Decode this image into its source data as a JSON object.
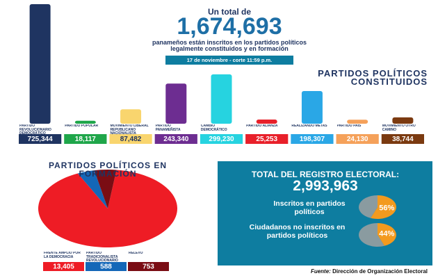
{
  "header": {
    "intro": "Un total de",
    "total": "1,674,693",
    "line1": "panameños están inscritos en los partidos políticos",
    "line2": "legalmente constituidos y en formación",
    "date": "17 de noviembre - corte 11:59 p.m."
  },
  "chart_data": [
    {
      "type": "bar",
      "title": "PARTIDOS POLÍTICOS CONSTITUIDOS",
      "categories": [
        "PARTIDO REVOLUCIONARIO DEMOCRÁTICO",
        "PARTIDO POPULAR",
        "MOVIMIENTO LIBERAL REPUBLICANO NACIONALISTA",
        "PARTIDO PANAMEÑISTA",
        "CAMBIO DEMOCRÁTICO",
        "PARTIDO ALIANZA",
        "REALIZANDO METAS",
        "PARTIDO PAÍS",
        "MOVIMIENTO OTRO CAMINO"
      ],
      "values": [
        725344,
        18117,
        87482,
        243340,
        299230,
        25253,
        198307,
        24130,
        38744
      ],
      "value_labels": [
        "725,344",
        "18,117",
        "87,482",
        "243,340",
        "299,230",
        "25,253",
        "198,307",
        "24,130",
        "38,744"
      ],
      "colors": [
        "#1f3461",
        "#1fa64a",
        "#f9d56e",
        "#6d2d91",
        "#26d3e0",
        "#e8202a",
        "#2aa7e6",
        "#f5a15a",
        "#7b3a10"
      ]
    },
    {
      "type": "pie",
      "title": "PARTIDOS POLÍTICOS EN FORMACIÓN",
      "categories": [
        "FRENTE AMPLIO POR LA DEMOCRACIA",
        "PARTIDO TRADICIONALISTA REVOLUCIONARIO",
        "RELEVO"
      ],
      "values": [
        13405,
        588,
        753
      ],
      "value_labels": [
        "13,405",
        "588",
        "753"
      ],
      "colors": [
        "#ee1c25",
        "#1467b8",
        "#7a0d14"
      ]
    },
    {
      "type": "pie",
      "title": "Inscritos en partidos políticos",
      "values": [
        56,
        44
      ],
      "value_labels": [
        "56%",
        null
      ],
      "colors": [
        "#f39a1e",
        "#8a9ba0"
      ]
    },
    {
      "type": "pie",
      "title": "Ciudadanos no inscritos en partidos políticos",
      "values": [
        44,
        56
      ],
      "value_labels": [
        "44%",
        null
      ],
      "colors": [
        "#f39a1e",
        "#8a9ba0"
      ]
    }
  ],
  "summary": {
    "title": "TOTAL DEL REGISTRO ELECTORAL:",
    "total": "2,993,963"
  },
  "footer": {
    "source_label": "Fuente:",
    "source": "Dirección de Organización Electoral"
  }
}
